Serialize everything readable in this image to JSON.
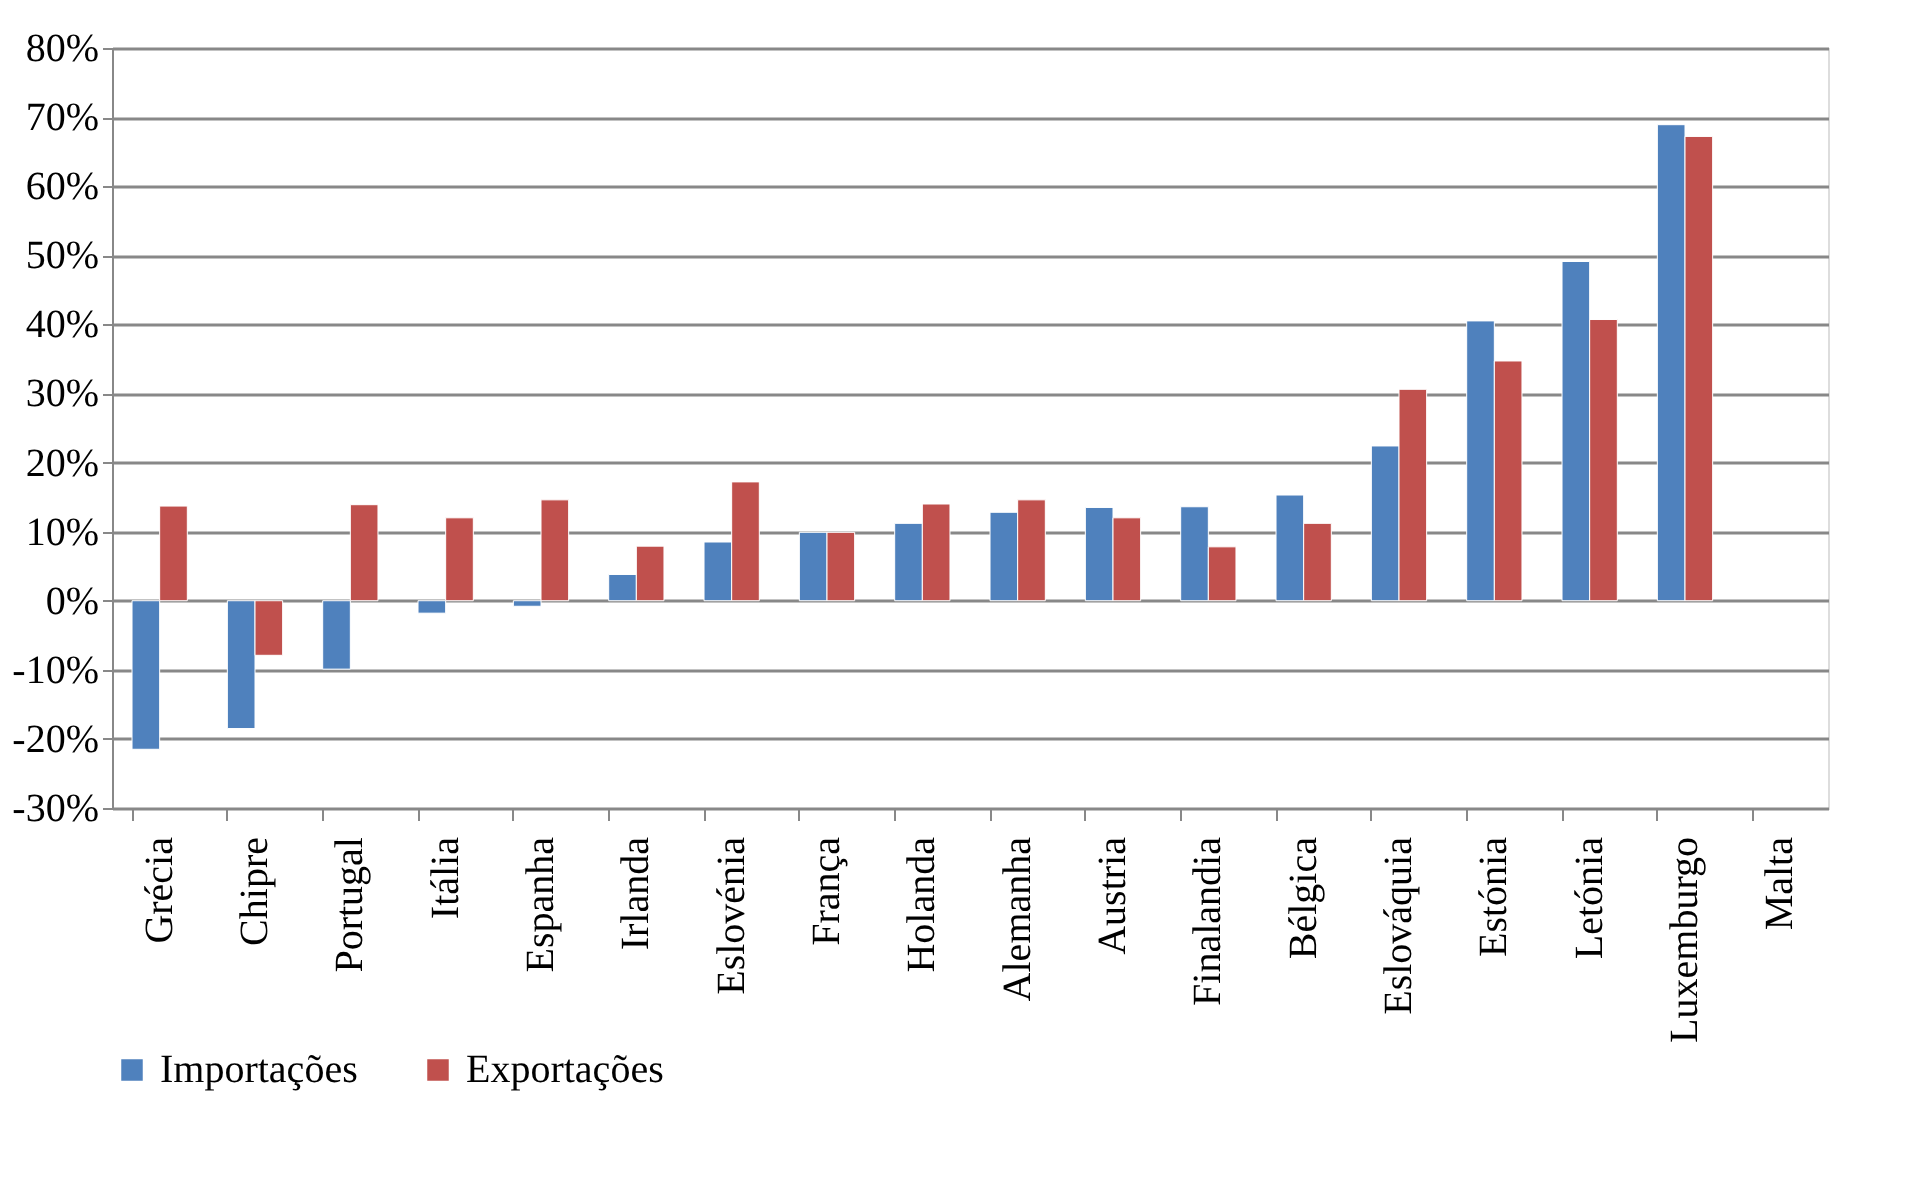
{
  "chart_data": {
    "type": "bar",
    "categories": [
      "Grécia",
      "Chipre",
      "Portugal",
      "Itália",
      "Espanha",
      "Irlanda",
      "Eslovénia",
      "França",
      "Holanda",
      "Alemanha",
      "Austria",
      "Finalandia",
      "Bélgica",
      "Eslováquia",
      "Estónia",
      "Letónia",
      "Luxemburgo",
      "Malta"
    ],
    "series": [
      {
        "name": "Importações",
        "color": "#4f81bd",
        "values": [
          -21.5,
          -18.5,
          -9.9,
          -1.8,
          -0.8,
          3.8,
          8.5,
          9.9,
          11.2,
          12.8,
          13.5,
          13.6,
          15.3,
          22.4,
          40.5,
          49.1,
          68.9,
          null
        ]
      },
      {
        "name": "Exportações",
        "color": "#c0504d",
        "values": [
          13.7,
          -7.9,
          13.9,
          12.0,
          14.6,
          7.9,
          17.2,
          9.9,
          14.0,
          14.6,
          12.0,
          7.8,
          11.2,
          30.6,
          34.7,
          40.7,
          67.2,
          null
        ]
      }
    ],
    "ylim": [
      -30,
      80
    ],
    "yticks": [
      {
        "value": -30,
        "label": "-30%"
      },
      {
        "value": -20,
        "label": "-20%"
      },
      {
        "value": -10,
        "label": "-10%"
      },
      {
        "value": 0,
        "label": "0%"
      },
      {
        "value": 10,
        "label": "10%"
      },
      {
        "value": 20,
        "label": "20%"
      },
      {
        "value": 30,
        "label": "30%"
      },
      {
        "value": 40,
        "label": "40%"
      },
      {
        "value": 50,
        "label": "50%"
      },
      {
        "value": 60,
        "label": "60%"
      },
      {
        "value": 70,
        "label": "70%"
      },
      {
        "value": 80,
        "label": "80%"
      }
    ],
    "grid": "y",
    "legend": "bottom"
  }
}
